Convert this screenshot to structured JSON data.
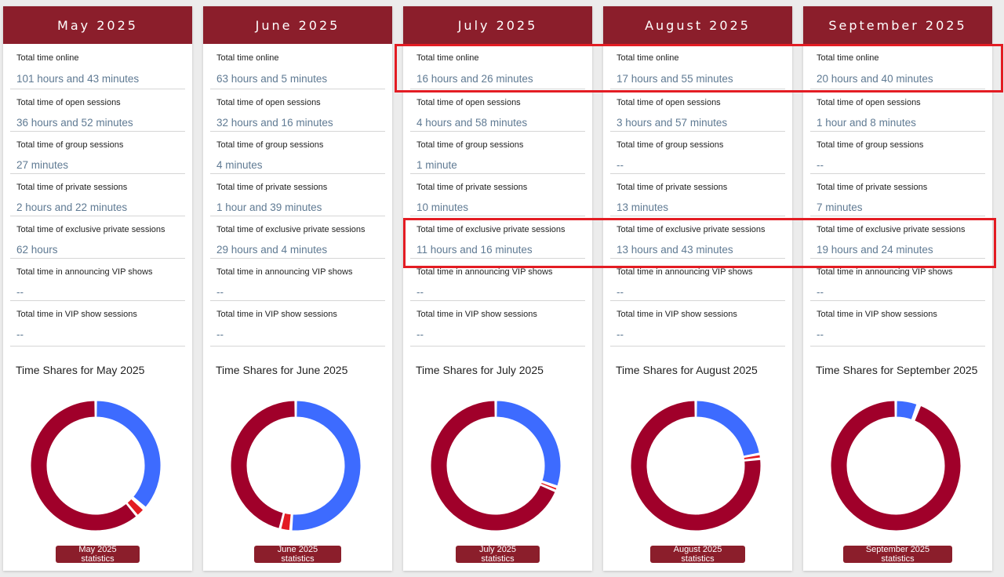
{
  "labels": {
    "total_online": "Total time online",
    "open": "Total time of open sessions",
    "group": "Total time of group sessions",
    "private": "Total time of private sessions",
    "exclusive": "Total time of exclusive private sessions",
    "announcing_vip": "Total time in announcing VIP shows",
    "vip_show": "Total time in VIP show sessions"
  },
  "colors": {
    "header": "#8b1e2b",
    "donut_dark": "#a0002a",
    "donut_blue": "#3d6bff",
    "donut_red": "#e31c23",
    "highlight": "#e31c23"
  },
  "months": [
    {
      "title": "May 2025",
      "total_online": "101 hours and 43 minutes",
      "open": "36 hours and 52 minutes",
      "group": "27 minutes",
      "private": "2 hours and 22 minutes",
      "exclusive": "62 hours",
      "announcing_vip": "--",
      "vip_show": "--",
      "chart_title": "Time Shares for May 2025",
      "button": "May 2025 statistics"
    },
    {
      "title": "June 2025",
      "total_online": "63 hours and 5 minutes",
      "open": "32 hours and 16 minutes",
      "group": "4 minutes",
      "private": "1 hour and 39 minutes",
      "exclusive": "29 hours and 4 minutes",
      "announcing_vip": "--",
      "vip_show": "--",
      "chart_title": "Time Shares for June 2025",
      "button": "June 2025 statistics"
    },
    {
      "title": "July 2025",
      "total_online": "16 hours and 26 minutes",
      "open": "4 hours and 58 minutes",
      "group": "1 minute",
      "private": "10 minutes",
      "exclusive": "11 hours and 16 minutes",
      "announcing_vip": "--",
      "vip_show": "--",
      "chart_title": "Time Shares for July 2025",
      "button": "July 2025 statistics"
    },
    {
      "title": "August 2025",
      "total_online": "17 hours and 55 minutes",
      "open": "3 hours and 57 minutes",
      "group": "--",
      "private": "13 minutes",
      "exclusive": "13 hours and 43 minutes",
      "announcing_vip": "--",
      "vip_show": "--",
      "chart_title": "Time Shares for August 2025",
      "button": "August 2025 statistics"
    },
    {
      "title": "September 2025",
      "total_online": "20 hours and 40 minutes",
      "open": "1 hour and 8 minutes",
      "group": "--",
      "private": "7 minutes",
      "exclusive": "19 hours and 24 minutes",
      "announcing_vip": "--",
      "vip_show": "--",
      "chart_title": "Time Shares for September 2025",
      "button": "September 2025 statistics"
    }
  ],
  "chart_data": [
    {
      "type": "pie",
      "categories": [
        "Open sessions",
        "Group sessions",
        "Private sessions",
        "Exclusive private sessions"
      ],
      "values": [
        2212,
        27,
        142,
        3720
      ]
    },
    {
      "type": "pie",
      "categories": [
        "Open sessions",
        "Group sessions",
        "Private sessions",
        "Exclusive private sessions"
      ],
      "values": [
        1936,
        4,
        99,
        1744
      ]
    },
    {
      "type": "pie",
      "categories": [
        "Open sessions",
        "Group sessions",
        "Private sessions",
        "Exclusive private sessions"
      ],
      "values": [
        298,
        1,
        10,
        676
      ]
    },
    {
      "type": "pie",
      "categories": [
        "Open sessions",
        "Group sessions",
        "Private sessions",
        "Exclusive private sessions"
      ],
      "values": [
        237,
        0,
        13,
        823
      ]
    },
    {
      "type": "pie",
      "categories": [
        "Open sessions",
        "Group sessions",
        "Private sessions",
        "Exclusive private sessions"
      ],
      "values": [
        68,
        0,
        7,
        1164
      ]
    }
  ]
}
